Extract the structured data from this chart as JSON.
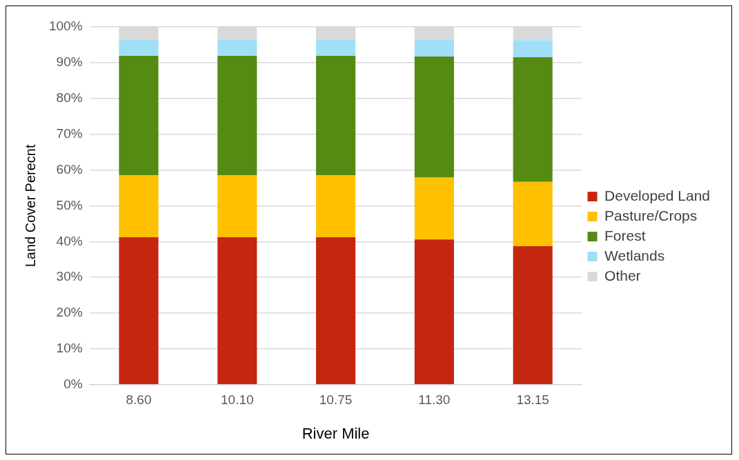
{
  "chart_data": {
    "type": "bar",
    "stacked": true,
    "xlabel": "River Mile",
    "ylabel": "Land Cover Perecnt",
    "categories": [
      "8.60",
      "10.10",
      "10.75",
      "11.30",
      "13.15"
    ],
    "series": [
      {
        "name": "Developed Land",
        "color": "#c5260f",
        "values": [
          41.2,
          41.2,
          41.2,
          40.6,
          38.7
        ]
      },
      {
        "name": "Pasture/Crops",
        "color": "#ffc000",
        "values": [
          17.3,
          17.3,
          17.3,
          17.4,
          18.0
        ]
      },
      {
        "name": "Forest",
        "color": "#558b12",
        "values": [
          33.4,
          33.4,
          33.4,
          33.7,
          34.8
        ]
      },
      {
        "name": "Wetlands",
        "color": "#a0dff7",
        "values": [
          4.5,
          4.5,
          4.5,
          4.7,
          4.8
        ]
      },
      {
        "name": "Other",
        "color": "#d9d9d9",
        "values": [
          3.6,
          3.6,
          3.6,
          3.6,
          3.7
        ]
      }
    ],
    "ylim": [
      0,
      100
    ],
    "yticks": [
      {
        "value": 0,
        "label": "0%"
      },
      {
        "value": 10,
        "label": "10%"
      },
      {
        "value": 20,
        "label": "20%"
      },
      {
        "value": 30,
        "label": "30%"
      },
      {
        "value": 40,
        "label": "40%"
      },
      {
        "value": 50,
        "label": "50%"
      },
      {
        "value": 60,
        "label": "60%"
      },
      {
        "value": 70,
        "label": "70%"
      },
      {
        "value": 80,
        "label": "80%"
      },
      {
        "value": 90,
        "label": "90%"
      },
      {
        "value": 100,
        "label": "100%"
      }
    ],
    "grid": "y",
    "legend": "right"
  }
}
